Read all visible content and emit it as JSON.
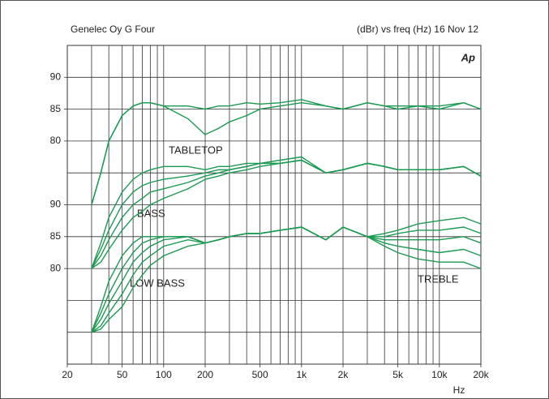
{
  "chart_data": {
    "type": "line",
    "title": "Genelec Oy G Four",
    "subtitle": "(dBr) vs freq (Hz) 16 Nov 12",
    "logo": "Ap",
    "x_label": "Hz",
    "annotations": [
      "TABLETOP",
      "BASS",
      "LOW BASS",
      "TREBLE"
    ],
    "x_log": true,
    "xlim": [
      20,
      20000
    ],
    "xticks": [
      20,
      50,
      100,
      200,
      500,
      {
        "value": 1000,
        "label": "1k"
      },
      {
        "value": 2000,
        "label": "2k"
      },
      {
        "value": 5000,
        "label": "5k"
      },
      {
        "value": 10000,
        "label": "10k"
      },
      {
        "value": 20000,
        "label": "20k"
      }
    ],
    "xgrid": [
      30,
      40,
      50,
      60,
      70,
      80,
      90,
      100,
      200,
      300,
      400,
      500,
      600,
      700,
      800,
      900,
      1000,
      2000,
      3000,
      4000,
      5000,
      6000,
      7000,
      8000,
      9000,
      10000
    ],
    "ylim": [
      45,
      95
    ],
    "yticks": [
      90,
      85,
      80,
      {
        "value": 70,
        "label": "90"
      },
      {
        "value": 65,
        "label": "85"
      },
      {
        "value": 60,
        "label": "80"
      }
    ],
    "ygrid": [
      50,
      55,
      60,
      65,
      70,
      75,
      80,
      85,
      90
    ],
    "color": "#1b9a52",
    "x": [
      30,
      35,
      40,
      50,
      60,
      70,
      80,
      100,
      150,
      200,
      250,
      300,
      400,
      500,
      700,
      1000,
      1500,
      2000,
      3000,
      4000,
      5000,
      7000,
      10000,
      15000,
      20000
    ],
    "series": [
      {
        "values": [
          70,
          75,
          80,
          84,
          85.5,
          86,
          86,
          85.5,
          85.5,
          85,
          85.5,
          85.5,
          86,
          85.8,
          86,
          86.5,
          85.5,
          85,
          86,
          85.5,
          85.5,
          85.5,
          85,
          86,
          85
        ]
      },
      {
        "values": [
          70,
          75,
          80,
          84,
          85.5,
          86,
          86,
          85.5,
          83.5,
          81,
          82,
          83,
          84,
          85,
          85.5,
          86,
          85.5,
          85,
          86,
          85.5,
          85,
          85.5,
          85.5,
          86,
          85
        ]
      },
      {
        "values": [
          60,
          64,
          68,
          72,
          74,
          75,
          75.5,
          76,
          76,
          75.5,
          76,
          76,
          76.5,
          76.5,
          77,
          77.5,
          75,
          75.5,
          76.5,
          76,
          75.5,
          75.5,
          75.5,
          76,
          74.5
        ]
      },
      {
        "values": [
          60,
          63,
          66,
          70,
          72,
          73,
          73.5,
          74,
          74.5,
          75,
          75.5,
          75.5,
          76,
          76.5,
          76.5,
          77,
          75,
          75.5,
          76.5,
          76,
          75.5,
          75.5,
          75.5,
          76,
          74.5
        ]
      },
      {
        "values": [
          60,
          62,
          64.5,
          68,
          70,
          71,
          72,
          72.5,
          73.5,
          74.5,
          75,
          75.5,
          76,
          76.5,
          76.5,
          77,
          75,
          75.5,
          76.5,
          76,
          75.5,
          75.5,
          75.5,
          76,
          74.5
        ]
      },
      {
        "values": [
          60,
          61,
          63,
          66,
          68,
          69,
          70,
          71,
          72.5,
          74,
          74.5,
          75,
          75.5,
          76,
          76.5,
          77,
          75,
          75.5,
          76.5,
          76,
          75.5,
          75.5,
          75.5,
          76,
          74.5
        ]
      },
      {
        "values": [
          50,
          54,
          58,
          62,
          64,
          65,
          65,
          65,
          65,
          64,
          64.5,
          65,
          65.5,
          65.5,
          66,
          66.5,
          64.5,
          66.5,
          65,
          65.5,
          66,
          67,
          67.5,
          68,
          67
        ]
      },
      {
        "values": [
          50,
          53,
          56,
          60,
          62.5,
          64,
          64.5,
          65,
          65,
          64,
          64.5,
          65,
          65.5,
          65.5,
          66,
          66.5,
          64.5,
          66.5,
          65,
          65,
          65.5,
          66,
          66,
          66.5,
          65.5
        ]
      },
      {
        "values": [
          50,
          52,
          54.5,
          58,
          61,
          62.5,
          63.5,
          64.5,
          65,
          64,
          64.5,
          65,
          65.5,
          65.5,
          66,
          66.5,
          64.5,
          66.5,
          65,
          64.5,
          64.5,
          64.5,
          64.5,
          65,
          64
        ]
      },
      {
        "values": [
          50,
          51,
          53,
          56,
          59,
          61,
          62,
          63.5,
          64.5,
          64,
          64.5,
          65,
          65.5,
          65.5,
          66,
          66.5,
          64.5,
          66.5,
          65,
          64,
          63.5,
          63,
          62.5,
          63,
          62
        ]
      },
      {
        "values": [
          50,
          50.5,
          52,
          54,
          57,
          59,
          60.5,
          62,
          63.5,
          64,
          64.5,
          65,
          65.5,
          65.5,
          66,
          66.5,
          64.5,
          66.5,
          65,
          63.5,
          62.5,
          61.5,
          61,
          61,
          60
        ]
      }
    ]
  }
}
